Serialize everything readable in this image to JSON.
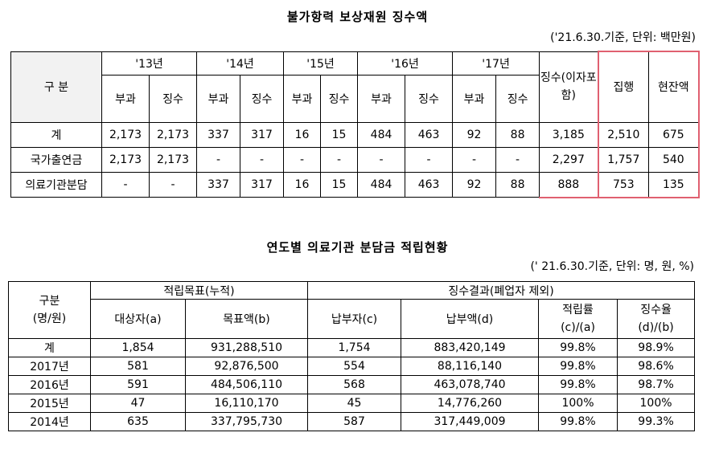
{
  "table1": {
    "title": "불가항력 보상재원 징수액",
    "note": "('21.6.30.기준, 단위: 백만원)",
    "col_label": "구 분",
    "years": [
      "'13년",
      "'14년",
      "'15년",
      "'16년",
      "'17년"
    ],
    "sub_bugwa": "부과",
    "sub_jingsu": "징수",
    "jingsu_total": "징수(이자포함)",
    "jiphaeng": "집행",
    "hyeonjan": "현잔액",
    "rows": [
      {
        "label": "계",
        "values": [
          "2,173",
          "2,173",
          "337",
          "317",
          "16",
          "15",
          "484",
          "463",
          "92",
          "88",
          "3,185",
          "2,510",
          "675"
        ]
      },
      {
        "label": "국가출연금",
        "values": [
          "2,173",
          "2,173",
          "-",
          "-",
          "-",
          "-",
          "-",
          "-",
          "-",
          "-",
          "2,297",
          "1,757",
          "540"
        ]
      },
      {
        "label": "의료기관분담",
        "values": [
          "-",
          "-",
          "337",
          "317",
          "16",
          "15",
          "484",
          "463",
          "92",
          "88",
          "888",
          "753",
          "135"
        ]
      }
    ]
  },
  "table2": {
    "title": "연도별 의료기관 분담금 적립현황",
    "note": "(' 21.6.30.기준, 단위: 명, 원, %)",
    "col_label_1": "구분",
    "col_label_2": "(명/원)",
    "group_target": "적립목표(누적)",
    "group_result": "징수결과(폐업자 제외)",
    "h_targets": "대상자(a)",
    "h_target_amount": "목표액(b)",
    "h_payers": "납부자(c)",
    "h_paid_amount": "납부액(d)",
    "h_rate1_a": "적립률",
    "h_rate1_b": "(c)/(a)",
    "h_rate2_a": "징수율",
    "h_rate2_b": "(d)/(b)",
    "rows": [
      {
        "label": "계",
        "values": [
          "1,854",
          "931,288,510",
          "1,754",
          "883,420,149",
          "99.8%",
          "98.9%"
        ]
      },
      {
        "label": "2017년",
        "values": [
          "581",
          "92,876,500",
          "554",
          "88,116,140",
          "99.8%",
          "98.6%"
        ]
      },
      {
        "label": "2016년",
        "values": [
          "591",
          "484,506,110",
          "568",
          "463,078,740",
          "99.8%",
          "98.7%"
        ]
      },
      {
        "label": "2015년",
        "values": [
          "47",
          "16,110,170",
          "45",
          "14,776,260",
          "100%",
          "100%"
        ]
      },
      {
        "label": "2014년",
        "values": [
          "635",
          "337,795,730",
          "587",
          "317,449,009",
          "99.8%",
          "99.3%"
        ]
      }
    ]
  }
}
